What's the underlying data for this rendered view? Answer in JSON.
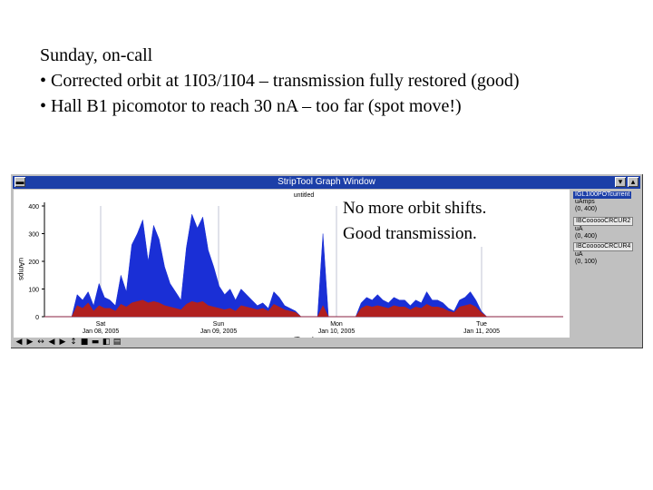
{
  "slide": {
    "line1": "Sunday, on-call",
    "line2": "• Corrected orbit at 1I03/1I04 – transmission fully restored (good)",
    "line3": "• Hall B1 picomotor to reach 30 nA – too far (spot move!)"
  },
  "window": {
    "title": "StripTool Graph Window",
    "plot_title": "untitled",
    "ylabel": "uAmps",
    "xlabel": "(Days)"
  },
  "annotation": {
    "line1": "No more orbit shifts.",
    "line2": "Good transmission."
  },
  "legend": [
    {
      "name": "IGL1I00POTcurrent",
      "unit": "uAmps",
      "range": "(0, 400)",
      "selected": true
    },
    {
      "name": "IBCoooooCRCUR2",
      "unit": "uA",
      "range": "(0, 400)",
      "selected": false
    },
    {
      "name": "IBCoooooCRCUR4",
      "unit": "uA",
      "range": "(0, 100)",
      "selected": false
    }
  ],
  "chart_data": {
    "type": "area",
    "ylabel": "uAmps",
    "xlabel": "(Days)",
    "ylim": [
      0,
      400
    ],
    "yticks": [
      "400",
      "300",
      "200",
      "100",
      "0"
    ],
    "xticks": [
      {
        "day": "Sat",
        "date": "Jan 08, 2005"
      },
      {
        "day": "Sun",
        "date": "Jan 09, 2005"
      },
      {
        "day": "Mon",
        "date": "Jan 10, 2005"
      },
      {
        "day": "Tue",
        "date": "Jan 11, 2005"
      }
    ],
    "series": [
      {
        "name": "IGL1I00POTcurrent",
        "color": "#1a2fd6",
        "values": [
          0,
          0,
          0,
          0,
          0,
          0,
          80,
          60,
          90,
          40,
          120,
          70,
          60,
          40,
          150,
          90,
          260,
          300,
          350,
          200,
          330,
          280,
          180,
          120,
          90,
          60,
          250,
          370,
          320,
          360,
          240,
          180,
          110,
          80,
          100,
          60,
          100,
          80,
          60,
          40,
          50,
          30,
          90,
          70,
          40,
          30,
          20,
          0,
          0,
          0,
          0,
          300,
          0,
          0,
          0,
          0,
          0,
          0,
          50,
          70,
          60,
          80,
          60,
          50,
          70,
          60,
          60,
          40,
          60,
          50,
          90,
          60,
          60,
          50,
          30,
          20,
          60,
          70,
          90,
          60,
          20,
          0,
          0,
          0,
          0,
          0,
          0,
          0,
          0,
          0,
          0,
          0,
          0,
          0,
          0,
          0
        ]
      },
      {
        "name": "IBCoooooCRCUR2",
        "color": "#b02020",
        "values": [
          0,
          0,
          0,
          0,
          0,
          0,
          40,
          30,
          50,
          20,
          40,
          30,
          30,
          20,
          45,
          35,
          50,
          55,
          60,
          50,
          55,
          50,
          40,
          35,
          30,
          25,
          45,
          55,
          50,
          55,
          40,
          35,
          30,
          25,
          30,
          20,
          40,
          35,
          30,
          25,
          30,
          20,
          45,
          35,
          25,
          20,
          15,
          0,
          0,
          0,
          0,
          40,
          0,
          0,
          0,
          0,
          0,
          0,
          30,
          40,
          35,
          40,
          35,
          30,
          40,
          35,
          35,
          25,
          35,
          30,
          45,
          35,
          35,
          30,
          20,
          15,
          35,
          40,
          45,
          35,
          15,
          0,
          0,
          0,
          0,
          0,
          0,
          0,
          0,
          0,
          0,
          0,
          0,
          0,
          0,
          0
        ]
      }
    ]
  },
  "toolbar": {
    "tools": [
      "◀",
      "▶",
      "↔",
      "◀",
      "▶",
      "↕",
      "■",
      "▬",
      "◧",
      "▤"
    ]
  }
}
